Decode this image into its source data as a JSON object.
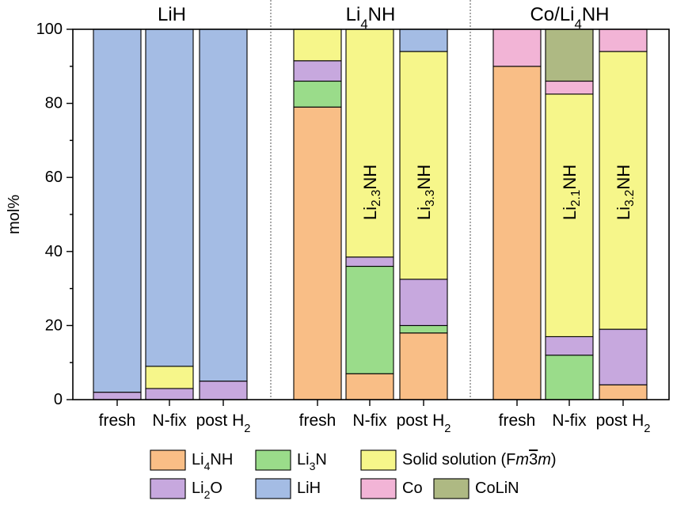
{
  "chart_data": {
    "type": "bar",
    "stacked": true,
    "ylabel": "mol%",
    "ylim": [
      0,
      100
    ],
    "yticks": [
      "0",
      "20",
      "40",
      "60",
      "80",
      "100"
    ],
    "grid": false,
    "legend_position": "bottom",
    "groups": [
      {
        "label": "LiH",
        "label_parts": [
          {
            "t": "LiH"
          }
        ]
      },
      {
        "label": "Li4NH",
        "label_parts": [
          {
            "t": "Li"
          },
          {
            "t": "4",
            "sub": true
          },
          {
            "t": "NH"
          }
        ]
      },
      {
        "label": "Co/Li4NH",
        "label_parts": [
          {
            "t": "Co/Li"
          },
          {
            "t": "4",
            "sub": true
          },
          {
            "t": "NH"
          }
        ]
      }
    ],
    "categories": [
      "fresh",
      "N-fix",
      "post H2",
      "fresh",
      "N-fix",
      "post H2",
      "fresh",
      "N-fix",
      "post H2"
    ],
    "category_label_parts": [
      [
        {
          "t": "fresh"
        }
      ],
      [
        {
          "t": "N-fix"
        }
      ],
      [
        {
          "t": "post H"
        },
        {
          "t": "2",
          "sub": true
        }
      ],
      [
        {
          "t": "fresh"
        }
      ],
      [
        {
          "t": "N-fix"
        }
      ],
      [
        {
          "t": "post H"
        },
        {
          "t": "2",
          "sub": true
        }
      ],
      [
        {
          "t": "fresh"
        }
      ],
      [
        {
          "t": "N-fix"
        }
      ],
      [
        {
          "t": "post H"
        },
        {
          "t": "2",
          "sub": true
        }
      ]
    ],
    "series": [
      {
        "name": "Li4NH",
        "color": "#F9BE86",
        "values": [
          0,
          0,
          0,
          79,
          7,
          18,
          90,
          0,
          4
        ]
      },
      {
        "name": "Li3N",
        "color": "#9ADC8A",
        "values": [
          0,
          0,
          0,
          7,
          29,
          2,
          0,
          12,
          0
        ]
      },
      {
        "name": "Li2O",
        "color": "#C7A8DE",
        "values": [
          2,
          3,
          5,
          5.5,
          2.5,
          12.5,
          0,
          5,
          15
        ]
      },
      {
        "name": "Solid solution (Fm3m)",
        "color": "#F6F68A",
        "values": [
          0,
          6,
          0,
          8.5,
          61.5,
          61.5,
          0,
          65.5,
          75
        ]
      },
      {
        "name": "LiH",
        "color": "#A4BCE4",
        "values": [
          98,
          91,
          95,
          0,
          0,
          6,
          0,
          0,
          0
        ]
      },
      {
        "name": "Co",
        "color": "#F2B4D6",
        "values": [
          0,
          0,
          0,
          0,
          0,
          0,
          10,
          3.5,
          6
        ]
      },
      {
        "name": "CoLiN",
        "color": "#AEB983",
        "values": [
          0,
          0,
          0,
          0,
          0,
          0,
          0,
          14,
          0
        ]
      }
    ],
    "bar_annotations": [
      {
        "category_index": 4,
        "text": "Li2.3NH",
        "parts": [
          {
            "t": "Li"
          },
          {
            "t": "2.3",
            "sub": true
          },
          {
            "t": "NH"
          }
        ]
      },
      {
        "category_index": 5,
        "text": "Li3.3NH",
        "parts": [
          {
            "t": "Li"
          },
          {
            "t": "3.3",
            "sub": true
          },
          {
            "t": "NH"
          }
        ]
      },
      {
        "category_index": 7,
        "text": "Li2.1NH",
        "parts": [
          {
            "t": "Li"
          },
          {
            "t": "2.1",
            "sub": true
          },
          {
            "t": "NH"
          }
        ]
      },
      {
        "category_index": 8,
        "text": "Li3.2NH",
        "parts": [
          {
            "t": "Li"
          },
          {
            "t": "3.2",
            "sub": true
          },
          {
            "t": "NH"
          }
        ]
      }
    ],
    "legend": [
      {
        "series": "Li4NH",
        "parts": [
          {
            "t": "Li"
          },
          {
            "t": "4",
            "sub": true
          },
          {
            "t": "NH"
          }
        ]
      },
      {
        "series": "Li3N",
        "parts": [
          {
            "t": "Li"
          },
          {
            "t": "3",
            "sub": true
          },
          {
            "t": "N"
          }
        ]
      },
      {
        "series": "Solid solution (Fm3m)",
        "parts": [
          {
            "t": "Solid solution (F"
          },
          {
            "t": "m",
            "italic": true
          },
          {
            "t": "3",
            "overline": true
          },
          {
            "t": "m",
            "italic": true
          },
          {
            "t": ")"
          }
        ]
      },
      {
        "series": "Li2O",
        "parts": [
          {
            "t": "Li"
          },
          {
            "t": "2",
            "sub": true
          },
          {
            "t": "O"
          }
        ]
      },
      {
        "series": "LiH",
        "parts": [
          {
            "t": "LiH"
          }
        ]
      },
      {
        "series": "Co",
        "parts": [
          {
            "t": "Co"
          }
        ]
      },
      {
        "series": "CoLiN",
        "parts": [
          {
            "t": "CoLiN"
          }
        ]
      }
    ]
  }
}
